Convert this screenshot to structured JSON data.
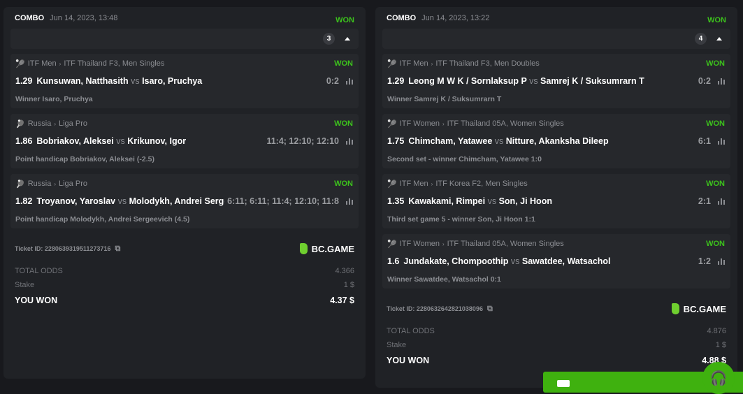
{
  "colors": {
    "won": "#3cc11c",
    "brand": "#6fcf2f"
  },
  "tickets": [
    {
      "type": "COMBO",
      "date": "Jun 14, 2023, 13:48",
      "status": "WON",
      "count": "3",
      "bets": [
        {
          "sport_icon": "tennis-icon",
          "league": "ITF Men",
          "tournament": "ITF Thailand F3, Men Singles",
          "status": "WON",
          "odds": "1.29",
          "home": "Kunsuwan, Natthasith",
          "vs": "vs",
          "away": "Isaro, Pruchya",
          "score": "0:2",
          "selection": "Winner Isaro, Pruchya"
        },
        {
          "sport_icon": "table-tennis-icon",
          "league": "Russia",
          "tournament": "Liga Pro",
          "status": "WON",
          "odds": "1.86",
          "home": "Bobriakov, Aleksei",
          "vs": "vs",
          "away": "Krikunov, Igor",
          "score": "11:4; 12:10; 12:10",
          "selection": "Point handicap Bobriakov, Aleksei (-2.5)"
        },
        {
          "sport_icon": "table-tennis-icon",
          "league": "Russia",
          "tournament": "Liga Pro",
          "status": "WON",
          "odds": "1.82",
          "home": "Troyanov, Yaroslav",
          "vs": "vs",
          "away": "Molodykh, Andrei Sergeevich",
          "score": "6:11; 6:11; 11:4; 12:10; 11:8",
          "selection": "Point handicap Molodykh, Andrei Sergeevich (4.5)"
        }
      ],
      "ticket_id": "Ticket ID: 2280639319511273716",
      "brand": "BC.GAME",
      "total_odds_label": "TOTAL ODDS",
      "total_odds": "4.366",
      "stake_label": "Stake",
      "stake": "1 $",
      "won_label": "YOU WON",
      "won_amount": "4.37 $"
    },
    {
      "type": "COMBO",
      "date": "Jun 14, 2023, 13:22",
      "status": "WON",
      "count": "4",
      "bets": [
        {
          "sport_icon": "tennis-icon",
          "league": "ITF Men",
          "tournament": "ITF Thailand F3, Men Doubles",
          "status": "WON",
          "odds": "1.29",
          "home": "Leong M W K / Sornlaksup P",
          "vs": "vs",
          "away": "Samrej K / Suksumrarn T",
          "score": "0:2",
          "selection": "Winner Samrej K / Suksumrarn T"
        },
        {
          "sport_icon": "tennis-icon",
          "league": "ITF Women",
          "tournament": "ITF Thailand 05A, Women Singles",
          "status": "WON",
          "odds": "1.75",
          "home": "Chimcham, Yatawee",
          "vs": "vs",
          "away": "Nitture, Akanksha Dileep",
          "score": "6:1",
          "selection": "Second set - winner Chimcham, Yatawee  1:0"
        },
        {
          "sport_icon": "tennis-icon",
          "league": "ITF Men",
          "tournament": "ITF Korea F2, Men Singles",
          "status": "WON",
          "odds": "1.35",
          "home": "Kawakami, Rimpei",
          "vs": "vs",
          "away": "Son, Ji Hoon",
          "score": "2:1",
          "selection": "Third set game 5 - winner Son, Ji Hoon  1:1"
        },
        {
          "sport_icon": "tennis-icon",
          "league": "ITF Women",
          "tournament": "ITF Thailand 05A, Women Singles",
          "status": "WON",
          "odds": "1.6",
          "home": "Jundakate, Chompoothip",
          "vs": "vs",
          "away": "Sawatdee, Watsachol",
          "score": "1:2",
          "selection": "Winner Sawatdee, Watsachol  0:1"
        }
      ],
      "ticket_id": "Ticket ID: 2280632642821038096",
      "brand": "BC.GAME",
      "total_odds_label": "TOTAL ODDS",
      "total_odds": "4.876",
      "stake_label": "Stake",
      "stake": "1 $",
      "won_label": "YOU WON",
      "won_amount": "4.88 $"
    }
  ]
}
